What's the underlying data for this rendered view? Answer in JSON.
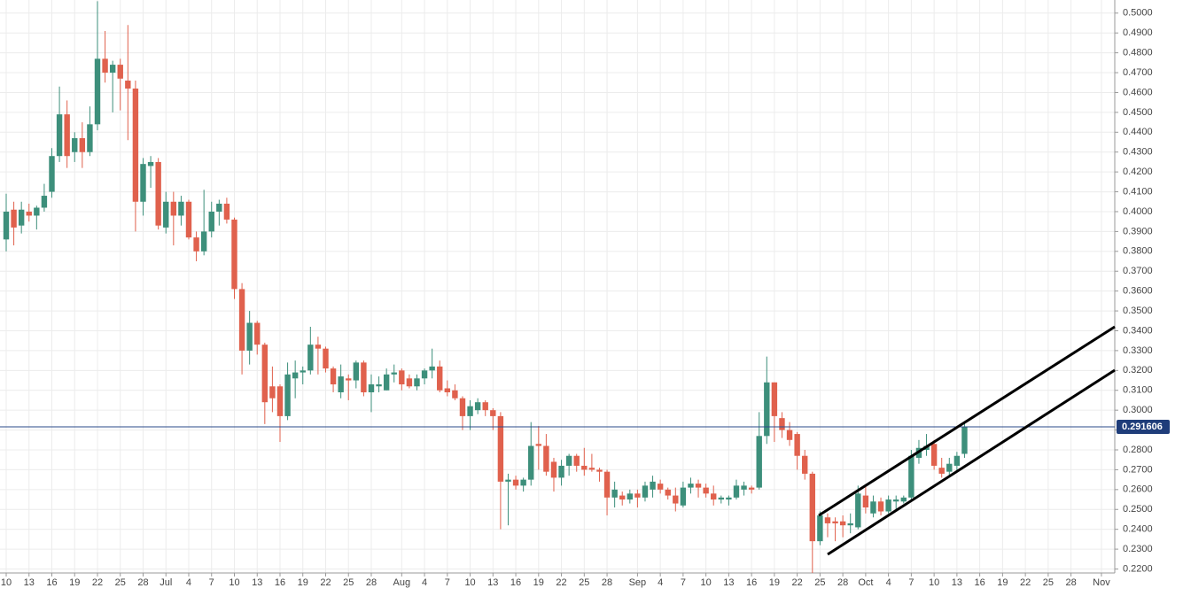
{
  "chart_data": {
    "type": "candlestick",
    "categories": [
      "10",
      null,
      null,
      "13",
      null,
      null,
      "16",
      null,
      null,
      "19",
      null,
      null,
      "22",
      null,
      null,
      "25",
      null,
      null,
      "28",
      null,
      null,
      "Jul",
      null,
      null,
      "4",
      null,
      null,
      "7",
      null,
      null,
      "10",
      null,
      null,
      "13",
      null,
      null,
      "16",
      null,
      null,
      "19",
      null,
      null,
      "22",
      null,
      null,
      "25",
      null,
      null,
      "28",
      null,
      null,
      null,
      "Aug",
      null,
      null,
      "4",
      null,
      null,
      "7",
      null,
      null,
      "10",
      null,
      null,
      "13",
      null,
      null,
      "16",
      null,
      null,
      "19",
      null,
      null,
      "22",
      null,
      null,
      "25",
      null,
      null,
      "28",
      null,
      null,
      null,
      "Sep",
      null,
      null,
      "4",
      null,
      null,
      "7",
      null,
      null,
      "10",
      null,
      null,
      "13",
      null,
      null,
      "16",
      null,
      null,
      "19",
      null,
      null,
      "22",
      null,
      null,
      "25",
      null,
      null,
      "28",
      null,
      null,
      "Oct",
      null,
      null,
      "4",
      null,
      null,
      "7",
      null,
      null,
      "10",
      null,
      null,
      "13",
      null,
      null,
      "16",
      null,
      null,
      "19",
      null,
      null,
      "22",
      null,
      null,
      "25",
      null,
      null,
      "28",
      null,
      null,
      null,
      "Nov",
      null,
      null
    ],
    "open": [
      0.386,
      0.401,
      0.393,
      0.4,
      0.398,
      0.402,
      0.41,
      0.428,
      0.449,
      0.43,
      0.437,
      0.43,
      0.444,
      0.477,
      0.47,
      0.474,
      0.466,
      0.462,
      0.405,
      0.423,
      0.425,
      0.392,
      0.405,
      0.398,
      0.405,
      0.387,
      0.38,
      0.39,
      0.4,
      0.404,
      0.396,
      0.361,
      0.33,
      0.344,
      0.333,
      0.312,
      0.312,
      0.297,
      0.316,
      0.319,
      0.32,
      0.333,
      0.331,
      0.321,
      0.309,
      0.316,
      0.315,
      0.324,
      0.309,
      0.312,
      0.31,
      0.318,
      0.32,
      0.316,
      0.312,
      0.316,
      0.32,
      0.322,
      0.311,
      0.31,
      0.306,
      0.297,
      0.3,
      0.304,
      0.3,
      0.297,
      0.264,
      0.265,
      0.262,
      0.265,
      0.283,
      0.282,
      0.274,
      0.266,
      0.272,
      0.277,
      0.272,
      0.271,
      0.27,
      0.269,
      0.256,
      0.257,
      0.255,
      0.258,
      0.256,
      0.26,
      0.263,
      0.26,
      0.257,
      0.252,
      0.261,
      0.263,
      0.261,
      0.258,
      0.255,
      0.255,
      0.256,
      0.26,
      0.261,
      0.261,
      0.287,
      0.314,
      0.296,
      0.29,
      0.288,
      0.277,
      0.268,
      0.234,
      0.246,
      0.244,
      0.244,
      0.242,
      0.241,
      0.257,
      0.248,
      0.254,
      0.249,
      0.254,
      0.254,
      0.256,
      0.276,
      0.28,
      0.283,
      0.271,
      0.269,
      0.272,
      0.278,
      null,
      null,
      null,
      null,
      null,
      null,
      null,
      null,
      null,
      null,
      null,
      null,
      null,
      null,
      null,
      null,
      null,
      null,
      null,
      null
    ],
    "high": [
      0.409,
      0.405,
      0.405,
      0.404,
      0.403,
      0.414,
      0.432,
      0.463,
      0.456,
      0.44,
      0.445,
      0.453,
      0.506,
      0.491,
      0.476,
      0.477,
      0.494,
      0.466,
      0.427,
      0.428,
      0.427,
      0.41,
      0.41,
      0.408,
      0.406,
      0.39,
      0.411,
      0.405,
      0.406,
      0.407,
      0.397,
      0.364,
      0.35,
      0.345,
      0.334,
      0.322,
      0.313,
      0.324,
      0.325,
      0.322,
      0.342,
      0.337,
      0.332,
      0.322,
      0.323,
      0.318,
      0.325,
      0.325,
      0.318,
      0.317,
      0.321,
      0.323,
      0.321,
      0.318,
      0.318,
      0.321,
      0.331,
      0.325,
      0.315,
      0.313,
      0.307,
      0.305,
      0.306,
      0.305,
      0.301,
      0.299,
      0.268,
      0.267,
      0.266,
      0.294,
      0.292,
      0.288,
      0.276,
      0.275,
      0.278,
      0.278,
      0.281,
      0.278,
      0.271,
      0.27,
      0.264,
      0.259,
      0.26,
      0.26,
      0.264,
      0.267,
      0.265,
      0.261,
      0.261,
      0.264,
      0.266,
      0.265,
      0.263,
      0.262,
      0.257,
      0.257,
      0.265,
      0.264,
      0.262,
      0.299,
      0.327,
      0.314,
      0.299,
      0.294,
      0.289,
      0.28,
      0.269,
      0.249,
      0.248,
      0.246,
      0.247,
      0.248,
      0.262,
      0.262,
      0.257,
      0.256,
      0.257,
      0.257,
      0.257,
      0.28,
      0.285,
      0.288,
      0.285,
      0.276,
      0.276,
      0.279,
      0.294,
      null,
      null,
      null,
      null,
      null,
      null,
      null,
      null,
      null,
      null,
      null,
      null,
      null,
      null,
      null,
      null,
      null,
      null,
      null,
      null
    ],
    "low": [
      0.38,
      0.383,
      0.389,
      0.395,
      0.391,
      0.4,
      0.407,
      0.425,
      0.422,
      0.425,
      0.422,
      0.428,
      0.441,
      0.465,
      0.45,
      0.451,
      0.436,
      0.39,
      0.398,
      0.412,
      0.391,
      0.389,
      0.383,
      0.393,
      0.386,
      0.375,
      0.378,
      0.387,
      0.393,
      0.394,
      0.356,
      0.318,
      0.323,
      0.328,
      0.293,
      0.299,
      0.284,
      0.295,
      0.306,
      0.313,
      0.318,
      0.318,
      0.319,
      0.309,
      0.306,
      0.305,
      0.311,
      0.307,
      0.299,
      0.309,
      0.31,
      0.314,
      0.31,
      0.311,
      0.31,
      0.313,
      0.316,
      0.309,
      0.307,
      0.305,
      0.29,
      0.29,
      0.298,
      0.297,
      0.29,
      0.24,
      0.242,
      0.26,
      0.259,
      0.262,
      0.27,
      0.267,
      0.259,
      0.262,
      0.267,
      0.269,
      0.267,
      0.269,
      0.264,
      0.247,
      0.251,
      0.252,
      0.253,
      0.251,
      0.254,
      0.256,
      0.258,
      0.255,
      0.249,
      0.251,
      0.258,
      0.256,
      0.256,
      0.252,
      0.253,
      0.252,
      0.255,
      0.257,
      0.258,
      0.26,
      0.283,
      0.284,
      0.286,
      0.282,
      0.27,
      0.265,
      0.218,
      0.232,
      0.236,
      0.234,
      0.236,
      0.238,
      0.24,
      0.248,
      0.246,
      0.247,
      0.248,
      0.249,
      0.253,
      0.255,
      0.273,
      0.277,
      0.27,
      0.266,
      0.267,
      0.269,
      0.276,
      null,
      null,
      null,
      null,
      null,
      null,
      null,
      null,
      null,
      null,
      null,
      null,
      null,
      null,
      null,
      null,
      null,
      null,
      null,
      null
    ],
    "close": [
      0.4,
      0.392,
      0.401,
      0.398,
      0.402,
      0.408,
      0.428,
      0.449,
      0.428,
      0.437,
      0.43,
      0.444,
      0.477,
      0.47,
      0.474,
      0.467,
      0.462,
      0.405,
      0.424,
      0.425,
      0.393,
      0.405,
      0.398,
      0.405,
      0.387,
      0.38,
      0.39,
      0.4,
      0.404,
      0.396,
      0.361,
      0.33,
      0.344,
      0.333,
      0.304,
      0.306,
      0.297,
      0.318,
      0.319,
      0.32,
      0.333,
      0.331,
      0.321,
      0.313,
      0.317,
      0.315,
      0.324,
      0.309,
      0.313,
      0.313,
      0.318,
      0.319,
      0.313,
      0.312,
      0.316,
      0.32,
      0.322,
      0.31,
      0.309,
      0.306,
      0.297,
      0.302,
      0.304,
      0.3,
      0.297,
      0.264,
      0.265,
      0.262,
      0.265,
      0.282,
      0.282,
      0.269,
      0.266,
      0.272,
      0.277,
      0.272,
      0.27,
      0.27,
      0.269,
      0.256,
      0.26,
      0.255,
      0.258,
      0.256,
      0.262,
      0.264,
      0.26,
      0.257,
      0.253,
      0.261,
      0.263,
      0.261,
      0.258,
      0.255,
      0.256,
      0.256,
      0.262,
      0.262,
      0.26,
      0.287,
      0.314,
      0.297,
      0.29,
      0.285,
      0.277,
      0.268,
      0.234,
      0.247,
      0.243,
      0.243,
      0.242,
      0.243,
      0.258,
      0.251,
      0.254,
      0.249,
      0.255,
      0.255,
      0.256,
      0.277,
      0.281,
      0.282,
      0.272,
      0.268,
      0.273,
      0.277,
      0.2916,
      null,
      null,
      null,
      null,
      null,
      null,
      null,
      null,
      null,
      null,
      null,
      null,
      null,
      null,
      null,
      null,
      null,
      null,
      null,
      null
    ],
    "up_color": "#3d8f7b",
    "down_color": "#e0614d",
    "last_price": 0.291606,
    "ylim": [
      0.218,
      0.5066
    ],
    "yticks": [
      {
        "value": 0.22,
        "label": "0.2200"
      },
      {
        "value": 0.23,
        "label": "0.2300"
      },
      {
        "value": 0.24,
        "label": "0.2400"
      },
      {
        "value": 0.25,
        "label": "0.2500"
      },
      {
        "value": 0.26,
        "label": "0.2600"
      },
      {
        "value": 0.27,
        "label": "0.2700"
      },
      {
        "value": 0.28,
        "label": "0.2800"
      },
      {
        "value": 0.29,
        "label": "0.2900"
      },
      {
        "value": 0.3,
        "label": "0.3000"
      },
      {
        "value": 0.31,
        "label": "0.3100"
      },
      {
        "value": 0.32,
        "label": "0.3200"
      },
      {
        "value": 0.33,
        "label": "0.3300"
      },
      {
        "value": 0.34,
        "label": "0.3400"
      },
      {
        "value": 0.35,
        "label": "0.3500"
      },
      {
        "value": 0.36,
        "label": "0.3600"
      },
      {
        "value": 0.37,
        "label": "0.3700"
      },
      {
        "value": 0.38,
        "label": "0.3800"
      },
      {
        "value": 0.39,
        "label": "0.3900"
      },
      {
        "value": 0.4,
        "label": "0.4000"
      },
      {
        "value": 0.41,
        "label": "0.4100"
      },
      {
        "value": 0.42,
        "label": "0.4200"
      },
      {
        "value": 0.43,
        "label": "0.4300"
      },
      {
        "value": 0.44,
        "label": "0.4400"
      },
      {
        "value": 0.45,
        "label": "0.4500"
      },
      {
        "value": 0.46,
        "label": "0.4600"
      },
      {
        "value": 0.47,
        "label": "0.4700"
      },
      {
        "value": 0.48,
        "label": "0.4800"
      },
      {
        "value": 0.49,
        "label": "0.4900"
      },
      {
        "value": 0.5,
        "label": "0.5000"
      }
    ],
    "grid": true
  }
}
